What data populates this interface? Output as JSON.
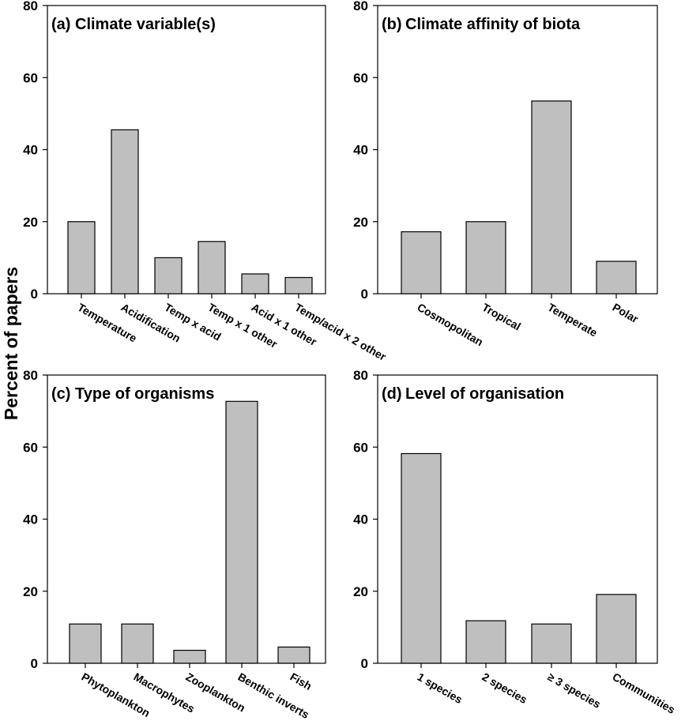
{
  "figure": {
    "ylabel": "Percent of papers"
  },
  "chart_data": [
    {
      "type": "bar",
      "panel": "(a)",
      "title": "Climate variable(s)",
      "categories": [
        "Temperature",
        "Acidification",
        "Temp x acid",
        "Temp x 1 other",
        "Acid x 1 other",
        "Temp/acid x 2 other"
      ],
      "values": [
        20,
        45.5,
        10,
        14.5,
        5.5,
        4.5
      ],
      "yticks": [
        "0",
        "20",
        "40",
        "60",
        "80"
      ],
      "ylim": [
        0,
        80
      ],
      "bar_color": "#bfbfbf"
    },
    {
      "type": "bar",
      "panel": "(b)",
      "title": "Climate affinity of biota",
      "categories": [
        "Cosmopolitan",
        "Tropical",
        "Temperate",
        "Polar"
      ],
      "values": [
        17.2,
        20,
        53.5,
        9
      ],
      "yticks": [
        "0",
        "20",
        "40",
        "60",
        "80"
      ],
      "ylim": [
        0,
        80
      ],
      "bar_color": "#bfbfbf"
    },
    {
      "type": "bar",
      "panel": "(c)",
      "title": "Type of organisms",
      "categories": [
        "Phytoplankton",
        "Macrophytes",
        "Zooplankton",
        "Benthic inverts",
        "Fish"
      ],
      "values": [
        10.9,
        10.9,
        3.6,
        72.7,
        4.5
      ],
      "yticks": [
        "0",
        "20",
        "40",
        "60",
        "80"
      ],
      "ylim": [
        0,
        80
      ],
      "bar_color": "#bfbfbf"
    },
    {
      "type": "bar",
      "panel": "(d)",
      "title": "Level of organisation",
      "categories": [
        "1 species",
        "2 species",
        "≥ 3 species",
        "Communities"
      ],
      "values": [
        58.2,
        11.8,
        10.9,
        19.1
      ],
      "yticks": [
        "0",
        "20",
        "40",
        "60",
        "80"
      ],
      "ylim": [
        0,
        80
      ],
      "bar_color": "#bfbfbf"
    }
  ]
}
